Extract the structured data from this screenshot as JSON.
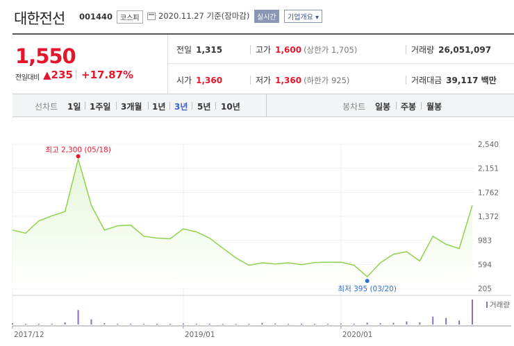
{
  "header": {
    "name": "대한전선",
    "code": "001440",
    "market": "코스피",
    "date": "2020.11.27 기준(장마감)",
    "realtime": "실시간",
    "company_info": "기업개요 ▾"
  },
  "summary": {
    "price": "1,550",
    "change_label": "전일대비",
    "change": "▲235",
    "change_pct": "+17.87%",
    "prev_label": "전일",
    "prev": "1,315",
    "high_label": "고가",
    "high": "1,600",
    "high_limit": "(상한가 1,705)",
    "volume_label": "거래량",
    "volume": "26,051,097",
    "open_label": "시가",
    "open": "1,360",
    "low_label": "저가",
    "low": "1,360",
    "low_limit": "(하한가 925)",
    "amount_label": "거래대금",
    "amount": "39,117 백만"
  },
  "toolbar": {
    "line_label": "선차트",
    "periods": [
      "1일",
      "1주일",
      "3개월",
      "1년",
      "3년",
      "5년",
      "10년"
    ],
    "selected_period": "3년",
    "candle_label": "봉차트",
    "candles": [
      "일봉",
      "주봉",
      "월봉"
    ]
  },
  "chart_data": {
    "type": "area",
    "x_tick_labels": [
      "2017/12",
      "2019/01",
      "2020/01"
    ],
    "y_ticks": [
      "2,540",
      "2,151",
      "1,762",
      "1,372",
      "983",
      "594",
      "205"
    ],
    "ylim": [
      205,
      2540
    ],
    "series": [
      {
        "x": [
          "2017/12",
          "2018/01",
          "2018/02",
          "2018/03",
          "2018/04",
          "2018/05",
          "2018/06",
          "2018/07",
          "2018/08",
          "2018/09",
          "2018/10",
          "2018/11",
          "2018/12",
          "2019/01",
          "2019/02",
          "2019/03",
          "2019/04",
          "2019/05",
          "2019/06",
          "2019/07",
          "2019/08",
          "2019/09",
          "2019/10",
          "2019/11",
          "2019/12",
          "2020/01",
          "2020/02",
          "2020/03",
          "2020/04",
          "2020/05",
          "2020/06",
          "2020/07",
          "2020/08",
          "2020/09",
          "2020/10",
          "2020/11"
        ],
        "values": [
          1150,
          1100,
          1300,
          1380,
          1450,
          2300,
          1550,
          1150,
          1220,
          1230,
          1050,
          1020,
          1010,
          1170,
          1120,
          1020,
          860,
          700,
          580,
          620,
          600,
          620,
          590,
          625,
          630,
          630,
          580,
          395,
          620,
          760,
          800,
          650,
          1050,
          920,
          850,
          1550
        ]
      }
    ],
    "volume_label": "거래량",
    "volume": [
      0.05,
      0.02,
      0.02,
      0.03,
      0.08,
      0.55,
      0.2,
      0.05,
      0.03,
      0.03,
      0.02,
      0.02,
      0.02,
      0.04,
      0.03,
      0.03,
      0.02,
      0.02,
      0.02,
      0.06,
      0.04,
      0.03,
      0.03,
      0.02,
      0.02,
      0.04,
      0.03,
      0.07,
      0.05,
      0.06,
      0.12,
      0.08,
      0.3,
      0.25,
      0.15,
      0.95
    ],
    "annotations": {
      "max_text": "최고 2,300 (05/18)",
      "max_value": 2300,
      "max_index": 5,
      "min_text": "최저  395 (03/20)",
      "min_value": 395,
      "min_index": 27
    },
    "colors": {
      "line": "#8fd14f",
      "fill_top": "#e6f6d8",
      "fill_bottom": "#ffffff",
      "volume": "#8a6fc0",
      "max_dot": "#e3162c",
      "min_dot": "#2f6fd1"
    }
  }
}
